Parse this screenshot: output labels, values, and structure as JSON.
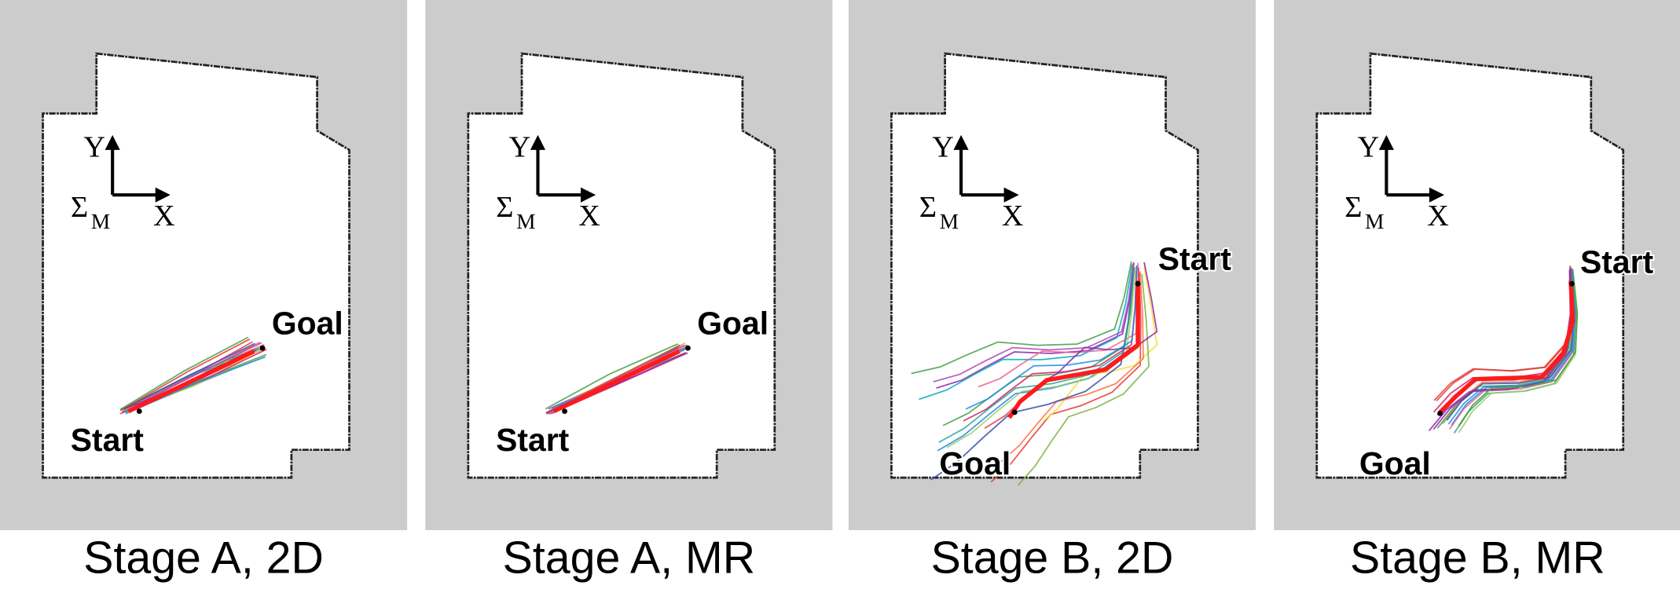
{
  "panels": [
    {
      "caption": "Stage A, 2D",
      "start_label": "Start",
      "goal_label": "Goal"
    },
    {
      "caption": "Stage A, MR",
      "start_label": "Start",
      "goal_label": "Goal"
    },
    {
      "caption": "Stage B, 2D",
      "start_label": "Start",
      "goal_label": "Goal"
    },
    {
      "caption": "Stage B, MR",
      "start_label": "Start",
      "goal_label": "Goal"
    }
  ],
  "frame": {
    "y": "Y",
    "x": "X",
    "symbol": "Σ",
    "subscript": "M"
  }
}
